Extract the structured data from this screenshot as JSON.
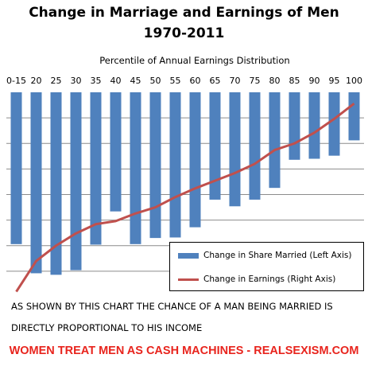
{
  "chart_data": {
    "type": "bar",
    "title": "Change in Marriage and Earnings of Men",
    "subtitle": "1970-2011",
    "xlabel": "Percentile of Annual Earnings Distribution",
    "categories": [
      "0-15",
      "20",
      "25",
      "30",
      "35",
      "40",
      "45",
      "50",
      "55",
      "60",
      "65",
      "70",
      "75",
      "80",
      "85",
      "90",
      "95",
      "100"
    ],
    "series": [
      {
        "name": "Change in Share Married (Left Axis)",
        "type": "bar",
        "axis": "left",
        "values": [
          -0.297,
          -0.354,
          -0.357,
          -0.348,
          -0.298,
          -0.233,
          -0.297,
          -0.285,
          -0.284,
          -0.264,
          -0.21,
          -0.223,
          -0.21,
          -0.187,
          -0.132,
          -0.13,
          -0.124,
          -0.094
        ],
        "color": "#4f81bd"
      },
      {
        "name": "Change in Earnings (Right Axis)",
        "type": "line",
        "axis": "right",
        "values": [
          -0.39,
          -0.33,
          -0.3,
          -0.276,
          -0.258,
          -0.252,
          -0.237,
          -0.225,
          -0.205,
          -0.188,
          -0.173,
          -0.158,
          -0.14,
          -0.113,
          -0.1,
          -0.079,
          -0.052,
          -0.022
        ],
        "color": "#c0504d"
      }
    ],
    "ylim_left": [
      -0.4,
      0
    ],
    "ylim_right": [
      -0.4,
      0
    ],
    "grid": true,
    "legend": "bottom-right",
    "notes": [
      "AS SHOWN BY THIS CHART THE CHANCE OF A MAN BEING MARRIED IS",
      "DIRECTLY PROPORTIONAL TO HIS INCOME"
    ],
    "footer": "WOMEN TREAT MEN AS CASH MACHINES - REALSEXISM.COM"
  }
}
